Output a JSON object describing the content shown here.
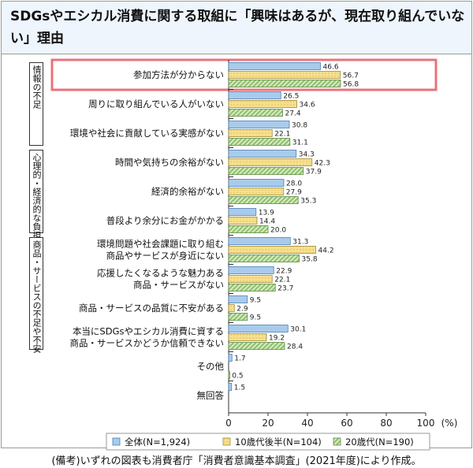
{
  "chart_data": {
    "type": "bar",
    "orientation": "horizontal",
    "title": "SDGsやエシカル消費に関する取組に「興味はあるが、現在取り組んでいない」理由",
    "xlim": [
      0,
      100
    ],
    "ticks": [
      "0",
      "20",
      "40",
      "60",
      "80",
      "100"
    ],
    "unit": "(%)",
    "groups": [
      {
        "label": "情報の不足",
        "range": [
          0,
          2
        ]
      },
      {
        "label": "心理的・経済的な負担",
        "range": [
          3,
          5
        ]
      },
      {
        "label": "商品・サービスの不足や不安",
        "range": [
          6,
          9
        ]
      }
    ],
    "categories": [
      [
        "参加方法が分からない"
      ],
      [
        "周りに取り組んでいる人がいない"
      ],
      [
        "環境や社会に貢献している実感がない"
      ],
      [
        "時間や気持ちの余裕がない"
      ],
      [
        "経済的余裕がない"
      ],
      [
        "普段より余分にお金がかかる"
      ],
      [
        "環境問題や社会課題に取り組む",
        "商品やサービスが身近にない"
      ],
      [
        "応援したくなるような魅力ある",
        "商品・サービスがない"
      ],
      [
        "商品・サービスの品質に不安がある"
      ],
      [
        "本当にSDGsやエシカル消費に資する",
        "商品・サービスかどうか信頼できない"
      ],
      [
        "その他"
      ],
      [
        "無回答"
      ]
    ],
    "series": [
      {
        "name": "全体(N=1,924)",
        "color": "#a9cbeb",
        "values": [
          46.6,
          26.5,
          30.8,
          34.3,
          28.0,
          13.9,
          31.3,
          22.9,
          9.5,
          30.1,
          1.7,
          1.5
        ],
        "labels": [
          "46.6",
          "26.5",
          "30.8",
          "34.3",
          "28.0",
          "13.9",
          "31.3",
          "22.9",
          "9.5",
          "30.1",
          "1.7",
          "1.5"
        ]
      },
      {
        "name": "10歳代後半(N=104)",
        "color": "#f5e08e",
        "values": [
          56.7,
          34.6,
          22.1,
          42.3,
          27.9,
          14.4,
          44.2,
          22.1,
          2.9,
          19.2,
          0,
          0
        ],
        "labels": [
          "56.7",
          "34.6",
          "22.1",
          "42.3",
          "27.9",
          "14.4",
          "44.2",
          "22.1",
          "2.9",
          "19.2",
          "",
          ""
        ]
      },
      {
        "name": "20歳代(N=190)",
        "color": "#b9d99c",
        "values": [
          56.8,
          27.4,
          31.1,
          37.9,
          35.3,
          20.0,
          35.8,
          23.7,
          9.5,
          28.4,
          0.5,
          0
        ],
        "labels": [
          "56.8",
          "27.4",
          "31.1",
          "37.9",
          "35.3",
          "20.0",
          "35.8",
          "23.7",
          "9.5",
          "28.4",
          "0.5",
          ""
        ]
      }
    ],
    "highlight_category": 0,
    "legend_position": "bottom"
  },
  "note": "(備考)いずれの図表も消費者庁「消費者意識基本調査」(2021年度)により作成。"
}
